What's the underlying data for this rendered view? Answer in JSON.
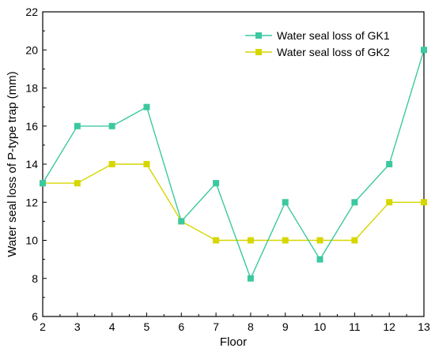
{
  "chart_data": {
    "type": "line",
    "title": "",
    "xlabel": "Floor",
    "ylabel": "Water seal loss of P-type trap (mm)",
    "x": [
      2,
      3,
      4,
      5,
      6,
      7,
      8,
      9,
      10,
      11,
      12,
      13
    ],
    "xlim": [
      2,
      13
    ],
    "ylim": [
      6,
      22
    ],
    "x_ticks": [
      "2",
      "3",
      "4",
      "5",
      "6",
      "7",
      "8",
      "9",
      "10",
      "11",
      "12",
      "13"
    ],
    "y_ticks": [
      "6",
      "8",
      "10",
      "12",
      "14",
      "16",
      "18",
      "20",
      "22"
    ],
    "grid": false,
    "legend_position": "top-right",
    "series": [
      {
        "name": "Water seal loss of GK1",
        "color": "#3cc8a0",
        "marker": "square",
        "values": [
          13,
          16,
          16,
          17,
          11,
          13,
          8,
          12,
          9,
          12,
          14,
          20
        ]
      },
      {
        "name": "Water seal loss of GK2",
        "color": "#d6d600",
        "marker": "square",
        "values": [
          13,
          13,
          14,
          14,
          11,
          10,
          10,
          10,
          10,
          10,
          12,
          12
        ]
      }
    ]
  }
}
